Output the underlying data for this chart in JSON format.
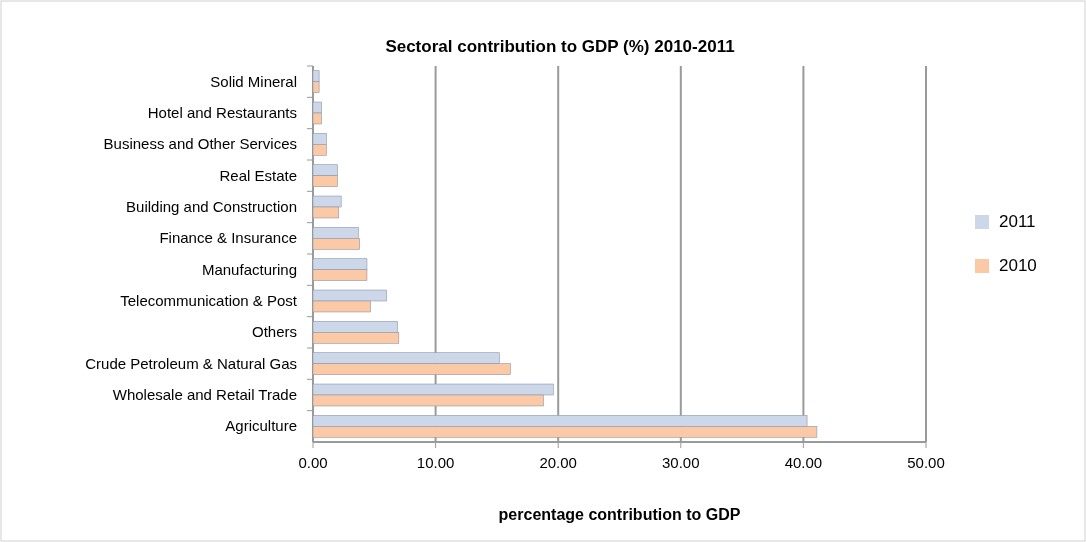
{
  "chart_data": {
    "type": "bar",
    "orientation": "horizontal",
    "title": "Sectoral contribution to GDP (%) 2010-2011",
    "xlabel": "percentage contribution to GDP",
    "categories": [
      "Solid Mineral",
      "Hotel and Restaurants",
      "Business and Other Services",
      "Real Estate",
      "Building and Construction",
      "Finance & Insurance",
      "Manufacturing",
      "Telecommunication & Post",
      "Others",
      "Crude Petroleum & Natural Gas",
      "Wholesale and Retail Trade",
      "Agriculture"
    ],
    "series": [
      {
        "name": "2011",
        "color": "#cdd7ea",
        "values": [
          0.5,
          0.7,
          1.1,
          2.0,
          2.3,
          3.7,
          4.4,
          6.0,
          6.9,
          15.2,
          19.6,
          40.3
        ]
      },
      {
        "name": "2010",
        "color": "#fcc9a6",
        "values": [
          0.5,
          0.7,
          1.1,
          2.0,
          2.1,
          3.8,
          4.4,
          4.7,
          7.0,
          16.1,
          18.8,
          41.1
        ]
      }
    ],
    "xlim": [
      0,
      50
    ],
    "xticks": [
      {
        "value": 0,
        "label": "0.00"
      },
      {
        "value": 10,
        "label": "10.00"
      },
      {
        "value": 20,
        "label": "20.00"
      },
      {
        "value": 30,
        "label": "30.00"
      },
      {
        "value": 40,
        "label": "40.00"
      },
      {
        "value": 50,
        "label": "50.00"
      }
    ],
    "grid": "x",
    "legend": "right"
  }
}
